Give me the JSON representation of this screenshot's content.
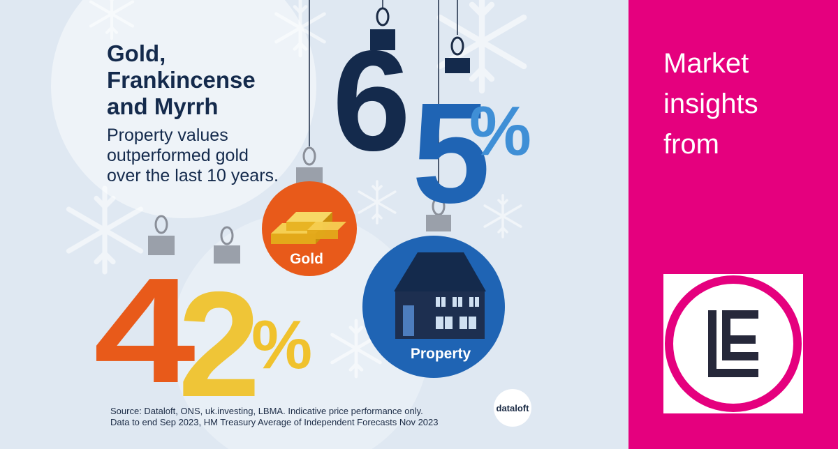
{
  "headline": {
    "title_lines": [
      "Gold,",
      "Frankincense",
      "and Myrrh"
    ],
    "subtitle_lines": [
      "Property values",
      "outperformed gold",
      "over the last 10 years."
    ]
  },
  "stats": {
    "property_percent": "65",
    "gold_percent": "42",
    "percent_sign": "%"
  },
  "ornaments": {
    "gold_label": "Gold",
    "property_label": "Property"
  },
  "source": {
    "line1": "Source: Dataloft, ONS, uk.investing, LBMA. Indicative price performance only.",
    "line2": "Data to end Sep 2023, HM Treasury Average of Independent Forecasts Nov 2023"
  },
  "badge": {
    "label": "dataloft"
  },
  "panel": {
    "tagline_lines": [
      "Market",
      "insights",
      "from"
    ],
    "background": "#e5007e"
  },
  "colors": {
    "navy": "#142a4c",
    "blue": "#1f64b4",
    "orange": "#e85a1a",
    "yellow": "#f0c22d",
    "magenta": "#e5007e"
  },
  "icons": [
    "snowflake-icon",
    "gold-bars-icon",
    "house-icon",
    "logo-le-icon"
  ]
}
